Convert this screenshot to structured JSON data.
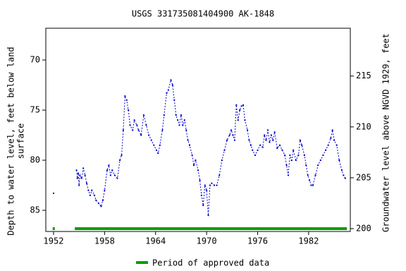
{
  "chart_data": {
    "type": "line",
    "title": "USGS 331735081404900 AK-1848",
    "ylabel_lines": [
      "Depth to water level, feet below land",
      "surface"
    ],
    "y2label": "Groundwater level above NGVD 1929, feet",
    "xlim": [
      1951.09,
      1986.9
    ],
    "xticks": [
      1952,
      1958,
      1964,
      1970,
      1976,
      1982
    ],
    "ylim": [
      66.83,
      87.11
    ],
    "yticks": [
      70,
      75,
      80,
      85
    ],
    "y_inverted": true,
    "y2lim": [
      219.7,
      199.72
    ],
    "y2ticks": [
      200,
      205,
      210,
      215
    ],
    "x": [
      1952.0,
      null,
      1954.7,
      1954.8,
      1954.9,
      1955.0,
      1955.1,
      1955.3,
      1955.5,
      1955.7,
      1955.9,
      1956.1,
      1956.3,
      1956.5,
      1956.8,
      1957.0,
      1957.3,
      1957.6,
      1957.8,
      1958.0,
      1958.3,
      1958.5,
      1958.7,
      1958.9,
      1959.2,
      1959.5,
      1959.8,
      1960.0,
      1960.2,
      1960.4,
      1960.6,
      1960.8,
      1961.0,
      1961.3,
      1961.5,
      1961.8,
      1962.0,
      1962.3,
      1962.6,
      1962.9,
      1963.2,
      1963.5,
      1963.8,
      1964.1,
      1964.3,
      1964.5,
      1964.8,
      1965.0,
      1965.3,
      1965.5,
      1965.8,
      1966.0,
      1966.2,
      1966.4,
      1966.6,
      1966.8,
      1967.0,
      1967.2,
      1967.4,
      1967.6,
      1967.8,
      1968.0,
      1968.3,
      1968.5,
      1968.7,
      1969.0,
      1969.2,
      1969.4,
      1969.6,
      1969.8,
      1970.0,
      1970.2,
      1970.4,
      1970.6,
      1970.9,
      1971.2,
      1971.5,
      1971.8,
      1972.1,
      1972.4,
      1972.7,
      1972.9,
      1973.1,
      1973.3,
      1973.5,
      1973.7,
      1973.9,
      1974.1,
      1974.3,
      1974.5,
      1974.8,
      1975.0,
      1975.2,
      1975.4,
      1975.7,
      1976.0,
      1976.3,
      1976.6,
      1976.8,
      1977.0,
      1977.2,
      1977.4,
      1977.6,
      1977.8,
      1978.0,
      1978.3,
      1978.6,
      1978.9,
      1979.2,
      1979.4,
      1979.6,
      1979.8,
      1980.0,
      1980.2,
      1980.5,
      1980.8,
      1981.0,
      1981.2,
      1981.5,
      1981.7,
      1981.9,
      1982.1,
      1982.3,
      1982.5,
      1982.8,
      1983.1,
      1983.4,
      1983.7,
      1984.0,
      1984.3,
      1984.6,
      1984.8,
      1985.0,
      1985.3,
      1985.6,
      1985.9,
      1986.1,
      1986.3
    ],
    "series": [
      {
        "color": "#0000cc",
        "values": [
          83.3,
          null,
          81.0,
          81.8,
          81.3,
          82.5,
          81.5,
          81.8,
          80.8,
          81.5,
          82.3,
          83.0,
          83.5,
          83.0,
          83.5,
          84.0,
          84.3,
          84.6,
          84.0,
          83.0,
          81.0,
          80.5,
          81.5,
          81.0,
          81.5,
          81.8,
          80.0,
          79.5,
          77.0,
          73.6,
          74.0,
          75.0,
          76.5,
          77.0,
          76.0,
          76.5,
          77.0,
          77.5,
          75.5,
          76.5,
          77.5,
          78.0,
          78.5,
          79.0,
          79.3,
          78.5,
          77.0,
          75.5,
          73.3,
          73.0,
          72.0,
          72.5,
          74.0,
          75.5,
          76.0,
          76.5,
          75.5,
          76.5,
          76.0,
          77.0,
          78.0,
          78.5,
          79.5,
          80.5,
          80.0,
          81.0,
          82.0,
          83.5,
          84.5,
          82.5,
          83.0,
          85.5,
          82.5,
          82.3,
          82.5,
          82.5,
          81.5,
          80.0,
          79.0,
          78.0,
          77.5,
          77.0,
          77.5,
          78.0,
          74.5,
          76.0,
          75.0,
          74.6,
          74.5,
          76.0,
          77.0,
          78.0,
          78.5,
          79.0,
          79.5,
          79.0,
          78.5,
          78.7,
          77.5,
          78.0,
          77.0,
          78.2,
          77.5,
          78.0,
          77.2,
          78.8,
          78.5,
          79.0,
          79.5,
          80.5,
          81.5,
          79.5,
          80.0,
          79.0,
          80.0,
          79.5,
          78.0,
          78.5,
          79.5,
          80.5,
          81.5,
          82.0,
          82.5,
          82.5,
          81.5,
          80.5,
          80.0,
          79.5,
          79.0,
          78.5,
          77.8,
          77.0,
          78.0,
          78.5,
          80.0,
          81.0,
          81.5,
          81.8
        ]
      }
    ],
    "approved": {
      "name": "Period of approved data",
      "color": "#00a000",
      "periods": [
        [
          1951.9,
          1952.15
        ],
        [
          1954.5,
          1986.5
        ]
      ]
    }
  }
}
